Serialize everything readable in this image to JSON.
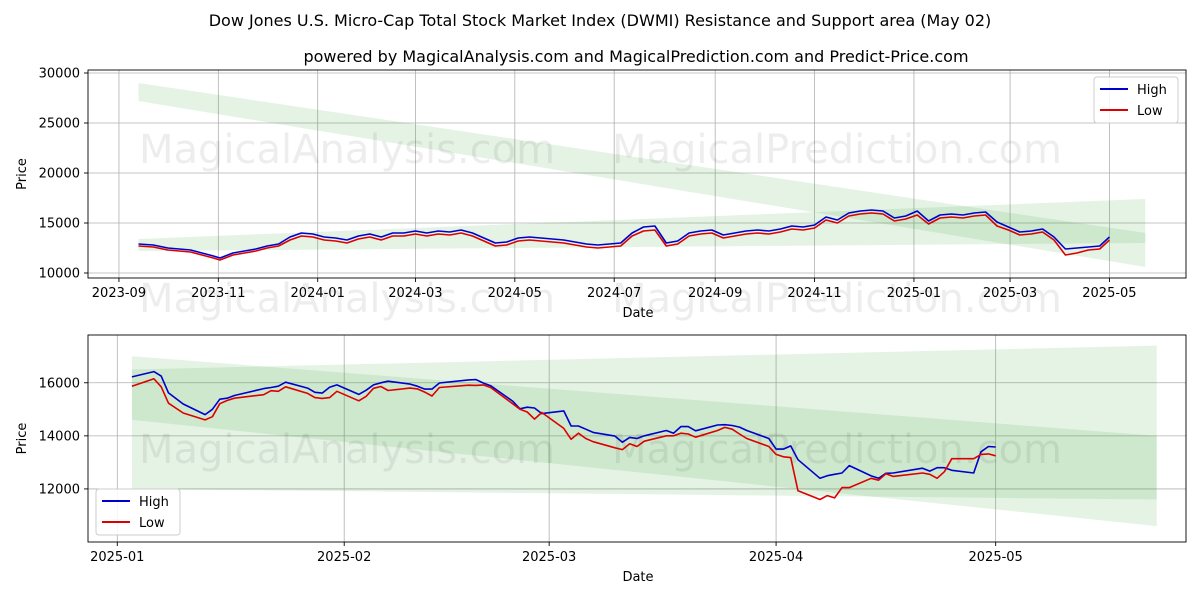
{
  "title": "Dow Jones U.S. Micro-Cap Total Stock Market Index (DWMI) Resistance and Support area (May 02)",
  "subtitle": "powered by MagicalAnalysis.com and MagicalPrediction.com and Predict-Price.com",
  "watermarks": [
    "MagicalAnalysis.com",
    "MagicalPrediction.com"
  ],
  "colors": {
    "high": "#0000cc",
    "low": "#dd0000",
    "band": "#2ca02c"
  },
  "chart_data": [
    {
      "type": "line",
      "xlabel": "Date",
      "ylabel": "Price",
      "xlim": [
        "2023-08-13",
        "2025-06-17"
      ],
      "ylim": [
        9500,
        30300
      ],
      "xticks": [
        {
          "date": "2023-09-01",
          "label": "2023-09"
        },
        {
          "date": "2023-11-01",
          "label": "2023-11"
        },
        {
          "date": "2024-01-01",
          "label": "2024-01"
        },
        {
          "date": "2024-03-01",
          "label": "2024-03"
        },
        {
          "date": "2024-05-01",
          "label": "2024-05"
        },
        {
          "date": "2024-07-01",
          "label": "2024-07"
        },
        {
          "date": "2024-09-01",
          "label": "2024-09"
        },
        {
          "date": "2024-11-01",
          "label": "2024-11"
        },
        {
          "date": "2025-01-01",
          "label": "2025-01"
        },
        {
          "date": "2025-03-01",
          "label": "2025-03"
        },
        {
          "date": "2025-05-01",
          "label": "2025-05"
        }
      ],
      "yticks": [
        10000,
        15000,
        20000,
        25000,
        30000
      ],
      "grid": true,
      "legend": "top-right",
      "bands": [
        {
          "x": [
            "2023-09-13",
            "2025-05-23"
          ],
          "upper": [
            29000,
            14000
          ],
          "lower": [
            27200,
            10600
          ],
          "opacity": 0.12
        },
        {
          "x": [
            "2023-09-13",
            "2025-05-23"
          ],
          "upper": [
            13400,
            17400
          ],
          "lower": [
            12200,
            13000
          ],
          "opacity": 0.12
        }
      ],
      "series": [
        {
          "name": "High",
          "x": [
            "2023-09-13",
            "2023-09-22",
            "2023-10-01",
            "2023-10-08",
            "2023-10-15",
            "2023-10-22",
            "2023-10-29",
            "2023-11-02",
            "2023-11-10",
            "2023-11-17",
            "2023-11-24",
            "2023-12-01",
            "2023-12-08",
            "2023-12-15",
            "2023-12-22",
            "2023-12-29",
            "2024-01-05",
            "2024-01-12",
            "2024-01-19",
            "2024-01-26",
            "2024-02-02",
            "2024-02-09",
            "2024-02-16",
            "2024-02-23",
            "2024-03-01",
            "2024-03-08",
            "2024-03-15",
            "2024-03-22",
            "2024-03-29",
            "2024-04-05",
            "2024-04-12",
            "2024-04-19",
            "2024-04-26",
            "2024-05-03",
            "2024-05-10",
            "2024-05-17",
            "2024-05-24",
            "2024-05-31",
            "2024-06-07",
            "2024-06-14",
            "2024-06-21",
            "2024-06-28",
            "2024-07-05",
            "2024-07-12",
            "2024-07-19",
            "2024-07-26",
            "2024-08-02",
            "2024-08-09",
            "2024-08-16",
            "2024-08-23",
            "2024-08-30",
            "2024-09-06",
            "2024-09-13",
            "2024-09-20",
            "2024-09-27",
            "2024-10-04",
            "2024-10-11",
            "2024-10-18",
            "2024-10-25",
            "2024-11-01",
            "2024-11-08",
            "2024-11-15",
            "2024-11-22",
            "2024-11-29",
            "2024-12-06",
            "2024-12-13",
            "2024-12-20",
            "2024-12-27",
            "2025-01-03",
            "2025-01-10",
            "2025-01-17",
            "2025-01-24",
            "2025-01-31",
            "2025-02-07",
            "2025-02-14",
            "2025-02-21",
            "2025-02-28",
            "2025-03-07",
            "2025-03-14",
            "2025-03-21",
            "2025-03-28",
            "2025-04-04",
            "2025-04-11",
            "2025-04-18",
            "2025-04-25",
            "2025-05-01"
          ],
          "values": [
            12900,
            12800,
            12500,
            12400,
            12300,
            12000,
            11700,
            11500,
            12000,
            12200,
            12400,
            12700,
            12900,
            13600,
            14000,
            13900,
            13600,
            13500,
            13300,
            13700,
            13900,
            13600,
            14000,
            14000,
            14200,
            14000,
            14200,
            14100,
            14300,
            14000,
            13500,
            13000,
            13100,
            13500,
            13600,
            13500,
            13400,
            13300,
            13100,
            12900,
            12800,
            12900,
            13000,
            14000,
            14600,
            14700,
            13000,
            13200,
            14000,
            14200,
            14300,
            13800,
            14000,
            14200,
            14300,
            14200,
            14400,
            14700,
            14600,
            14800,
            15600,
            15300,
            16000,
            16200,
            16300,
            16200,
            15500,
            15700,
            16200,
            15200,
            15800,
            15900,
            15800,
            16000,
            16100,
            15100,
            14600,
            14100,
            14200,
            14400,
            13600,
            12400,
            12500,
            12600,
            12700,
            13600
          ]
        },
        {
          "name": "Low",
          "x": [
            "2023-09-13",
            "2023-09-22",
            "2023-10-01",
            "2023-10-08",
            "2023-10-15",
            "2023-10-22",
            "2023-10-29",
            "2023-11-02",
            "2023-11-10",
            "2023-11-17",
            "2023-11-24",
            "2023-12-01",
            "2023-12-08",
            "2023-12-15",
            "2023-12-22",
            "2023-12-29",
            "2024-01-05",
            "2024-01-12",
            "2024-01-19",
            "2024-01-26",
            "2024-02-02",
            "2024-02-09",
            "2024-02-16",
            "2024-02-23",
            "2024-03-01",
            "2024-03-08",
            "2024-03-15",
            "2024-03-22",
            "2024-03-29",
            "2024-04-05",
            "2024-04-12",
            "2024-04-19",
            "2024-04-26",
            "2024-05-03",
            "2024-05-10",
            "2024-05-17",
            "2024-05-24",
            "2024-05-31",
            "2024-06-07",
            "2024-06-14",
            "2024-06-21",
            "2024-06-28",
            "2024-07-05",
            "2024-07-12",
            "2024-07-19",
            "2024-07-26",
            "2024-08-02",
            "2024-08-09",
            "2024-08-16",
            "2024-08-23",
            "2024-08-30",
            "2024-09-06",
            "2024-09-13",
            "2024-09-20",
            "2024-09-27",
            "2024-10-04",
            "2024-10-11",
            "2024-10-18",
            "2024-10-25",
            "2024-11-01",
            "2024-11-08",
            "2024-11-15",
            "2024-11-22",
            "2024-11-29",
            "2024-12-06",
            "2024-12-13",
            "2024-12-20",
            "2024-12-27",
            "2025-01-03",
            "2025-01-10",
            "2025-01-17",
            "2025-01-24",
            "2025-01-31",
            "2025-02-07",
            "2025-02-14",
            "2025-02-21",
            "2025-02-28",
            "2025-03-07",
            "2025-03-14",
            "2025-03-21",
            "2025-03-28",
            "2025-04-04",
            "2025-04-11",
            "2025-04-18",
            "2025-04-25",
            "2025-05-01"
          ],
          "values": [
            12700,
            12600,
            12300,
            12200,
            12100,
            11800,
            11500,
            11300,
            11800,
            12000,
            12200,
            12500,
            12700,
            13300,
            13700,
            13600,
            13300,
            13200,
            13000,
            13400,
            13600,
            13300,
            13700,
            13700,
            13900,
            13700,
            13900,
            13800,
            14000,
            13700,
            13200,
            12700,
            12800,
            13200,
            13300,
            13200,
            13100,
            13000,
            12800,
            12600,
            12500,
            12600,
            12700,
            13700,
            14200,
            14300,
            12700,
            12900,
            13700,
            13900,
            14000,
            13500,
            13700,
            13900,
            14000,
            13900,
            14100,
            14400,
            14300,
            14500,
            15300,
            15000,
            15700,
            15900,
            16000,
            15900,
            15200,
            15400,
            15800,
            14900,
            15500,
            15600,
            15500,
            15700,
            15800,
            14700,
            14300,
            13800,
            13900,
            14100,
            13300,
            11800,
            12000,
            12300,
            12400,
            13300
          ]
        }
      ]
    },
    {
      "type": "line",
      "xlabel": "Date",
      "ylabel": "Price",
      "xlim": [
        "2024-12-28",
        "2025-05-27"
      ],
      "ylim": [
        10000,
        17800
      ],
      "xticks": [
        {
          "date": "2025-01-01",
          "label": "2025-01"
        },
        {
          "date": "2025-02-01",
          "label": "2025-02"
        },
        {
          "date": "2025-03-01",
          "label": "2025-03"
        },
        {
          "date": "2025-04-01",
          "label": "2025-04"
        },
        {
          "date": "2025-05-01",
          "label": "2025-05"
        }
      ],
      "yticks": [
        12000,
        14000,
        16000
      ],
      "grid": true,
      "legend": "bottom-left",
      "bands": [
        {
          "x": [
            "2025-01-03",
            "2025-05-23"
          ],
          "upper": [
            17000,
            14000
          ],
          "lower": [
            14600,
            10600
          ],
          "opacity": 0.12
        },
        {
          "x": [
            "2025-01-03",
            "2025-05-23"
          ],
          "upper": [
            16500,
            17400
          ],
          "lower": [
            12000,
            11600
          ],
          "opacity": 0.12
        }
      ],
      "series": [
        {
          "name": "High",
          "x": [
            "2025-01-03",
            "2025-01-06",
            "2025-01-07",
            "2025-01-08",
            "2025-01-10",
            "2025-01-13",
            "2025-01-14",
            "2025-01-15",
            "2025-01-16",
            "2025-01-17",
            "2025-01-21",
            "2025-01-22",
            "2025-01-23",
            "2025-01-24",
            "2025-01-27",
            "2025-01-28",
            "2025-01-29",
            "2025-01-30",
            "2025-01-31",
            "2025-02-03",
            "2025-02-04",
            "2025-02-05",
            "2025-02-06",
            "2025-02-07",
            "2025-02-10",
            "2025-02-11",
            "2025-02-12",
            "2025-02-13",
            "2025-02-14",
            "2025-02-18",
            "2025-02-19",
            "2025-02-20",
            "2025-02-21",
            "2025-02-24",
            "2025-02-25",
            "2025-02-26",
            "2025-02-27",
            "2025-02-28",
            "2025-03-03",
            "2025-03-04",
            "2025-03-05",
            "2025-03-06",
            "2025-03-07",
            "2025-03-10",
            "2025-03-11",
            "2025-03-12",
            "2025-03-13",
            "2025-03-14",
            "2025-03-17",
            "2025-03-18",
            "2025-03-19",
            "2025-03-20",
            "2025-03-21",
            "2025-03-24",
            "2025-03-25",
            "2025-03-26",
            "2025-03-27",
            "2025-03-28",
            "2025-03-31",
            "2025-04-01",
            "2025-04-02",
            "2025-04-03",
            "2025-04-04",
            "2025-04-07",
            "2025-04-08",
            "2025-04-09",
            "2025-04-10",
            "2025-04-11",
            "2025-04-14",
            "2025-04-15",
            "2025-04-16",
            "2025-04-17",
            "2025-04-21",
            "2025-04-22",
            "2025-04-23",
            "2025-04-24",
            "2025-04-25",
            "2025-04-28",
            "2025-04-29",
            "2025-04-30",
            "2025-05-01"
          ],
          "values": [
            16220,
            16420,
            16250,
            15620,
            15200,
            14800,
            15000,
            15380,
            15420,
            15520,
            15780,
            15820,
            15870,
            16020,
            15800,
            15640,
            15610,
            15830,
            15920,
            15560,
            15720,
            15920,
            16000,
            16060,
            15950,
            15870,
            15760,
            15760,
            15990,
            16110,
            16120,
            15990,
            15890,
            15310,
            15020,
            15080,
            15050,
            14840,
            14940,
            14370,
            14370,
            14250,
            14130,
            13990,
            13760,
            13940,
            13900,
            14000,
            14200,
            14100,
            14350,
            14350,
            14190,
            14410,
            14420,
            14390,
            14330,
            14200,
            13900,
            13500,
            13500,
            13620,
            13100,
            12400,
            12500,
            12550,
            12600,
            12880,
            12490,
            12400,
            12590,
            12600,
            12780,
            12670,
            12800,
            12800,
            12700,
            12600,
            13400,
            13600,
            13580
          ]
        },
        {
          "name": "Low",
          "x": [
            "2025-01-03",
            "2025-01-06",
            "2025-01-07",
            "2025-01-08",
            "2025-01-10",
            "2025-01-13",
            "2025-01-14",
            "2025-01-15",
            "2025-01-16",
            "2025-01-17",
            "2025-01-21",
            "2025-01-22",
            "2025-01-23",
            "2025-01-24",
            "2025-01-27",
            "2025-01-28",
            "2025-01-29",
            "2025-01-30",
            "2025-01-31",
            "2025-02-03",
            "2025-02-04",
            "2025-02-05",
            "2025-02-06",
            "2025-02-07",
            "2025-02-10",
            "2025-02-11",
            "2025-02-12",
            "2025-02-13",
            "2025-02-14",
            "2025-02-18",
            "2025-02-19",
            "2025-02-20",
            "2025-02-21",
            "2025-02-24",
            "2025-02-25",
            "2025-02-26",
            "2025-02-27",
            "2025-02-28",
            "2025-03-03",
            "2025-03-04",
            "2025-03-05",
            "2025-03-06",
            "2025-03-07",
            "2025-03-10",
            "2025-03-11",
            "2025-03-12",
            "2025-03-13",
            "2025-03-14",
            "2025-03-17",
            "2025-03-18",
            "2025-03-19",
            "2025-03-20",
            "2025-03-21",
            "2025-03-24",
            "2025-03-25",
            "2025-03-26",
            "2025-03-27",
            "2025-03-28",
            "2025-03-31",
            "2025-04-01",
            "2025-04-02",
            "2025-04-03",
            "2025-04-04",
            "2025-04-07",
            "2025-04-08",
            "2025-04-09",
            "2025-04-10",
            "2025-04-11",
            "2025-04-14",
            "2025-04-15",
            "2025-04-16",
            "2025-04-17",
            "2025-04-21",
            "2025-04-22",
            "2025-04-23",
            "2025-04-24",
            "2025-04-25",
            "2025-04-28",
            "2025-04-29",
            "2025-04-30",
            "2025-05-01"
          ],
          "values": [
            15870,
            16150,
            15850,
            15230,
            14860,
            14600,
            14720,
            15210,
            15330,
            15420,
            15550,
            15700,
            15680,
            15850,
            15600,
            15440,
            15410,
            15440,
            15680,
            15320,
            15490,
            15790,
            15860,
            15710,
            15800,
            15770,
            15650,
            15500,
            15820,
            15910,
            15900,
            15920,
            15820,
            15210,
            15000,
            14900,
            14630,
            14880,
            14280,
            13870,
            14100,
            13900,
            13780,
            13550,
            13480,
            13700,
            13600,
            13800,
            14000,
            14000,
            14100,
            14070,
            13950,
            14200,
            14320,
            14250,
            14070,
            13900,
            13600,
            13300,
            13210,
            13180,
            11930,
            11600,
            11750,
            11660,
            12050,
            12050,
            12400,
            12330,
            12570,
            12470,
            12600,
            12550,
            12400,
            12650,
            13140,
            13140,
            13300,
            13320,
            13250
          ]
        }
      ]
    }
  ]
}
